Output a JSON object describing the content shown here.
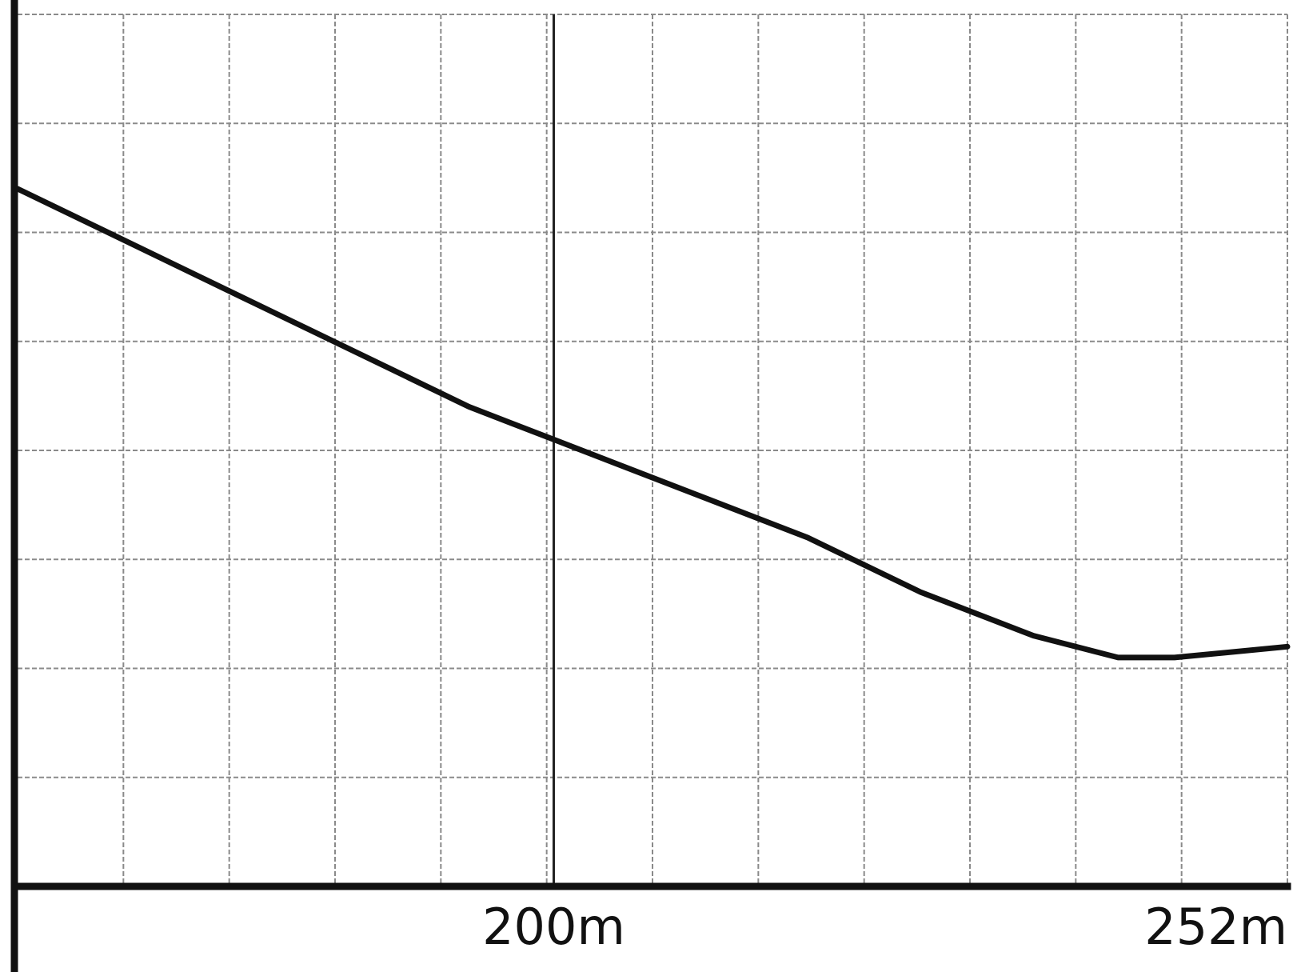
{
  "chart_data": {
    "type": "line",
    "title": "",
    "xlabel": "",
    "ylabel": "",
    "x_unit": "m",
    "xlim": [
      162,
      252
    ],
    "ylim": [
      0,
      8
    ],
    "grid": true,
    "x_ticks": [
      {
        "value": 200,
        "label": "200m"
      },
      {
        "value": 252,
        "label": "252m"
      }
    ],
    "marker_x": 200,
    "series": [
      {
        "values": [
          {
            "x": 162,
            "y": 6.4
          },
          {
            "x": 170,
            "y": 5.9
          },
          {
            "x": 178,
            "y": 5.4
          },
          {
            "x": 186,
            "y": 4.9
          },
          {
            "x": 194,
            "y": 4.4
          },
          {
            "x": 200,
            "y": 4.1
          },
          {
            "x": 210,
            "y": 3.6
          },
          {
            "x": 218,
            "y": 3.2
          },
          {
            "x": 226,
            "y": 2.7
          },
          {
            "x": 234,
            "y": 2.3
          },
          {
            "x": 240,
            "y": 2.1
          },
          {
            "x": 244,
            "y": 2.1
          },
          {
            "x": 252,
            "y": 2.2
          }
        ]
      }
    ]
  }
}
